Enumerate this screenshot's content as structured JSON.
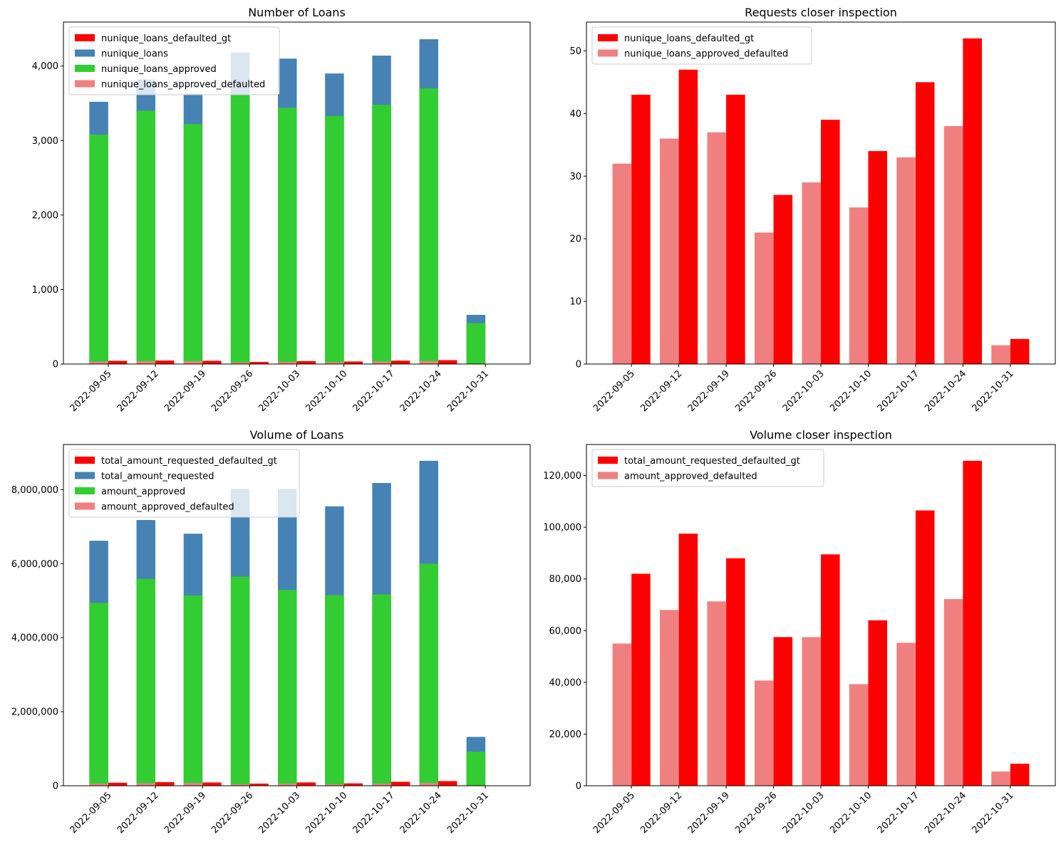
{
  "chart_data": [
    {
      "type": "bar",
      "title": "Number of Loans",
      "categories": [
        "2022-09-05",
        "2022-09-12",
        "2022-09-19",
        "2022-09-26",
        "2022-10-03",
        "2022-10-10",
        "2022-10-17",
        "2022-10-24",
        "2022-10-31"
      ],
      "series": [
        {
          "name": "nunique_loans_defaulted_gt",
          "color": "#ff0000",
          "values": [
            43,
            47,
            43,
            27,
            39,
            34,
            45,
            52,
            4
          ]
        },
        {
          "name": "nunique_loans",
          "color": "#4682b4",
          "values": [
            3520,
            3820,
            3630,
            4180,
            4100,
            3900,
            4140,
            4360,
            660
          ]
        },
        {
          "name": "nunique_loans_approved",
          "color": "#32cd32",
          "values": [
            3080,
            3400,
            3220,
            3610,
            3440,
            3330,
            3480,
            3700,
            550
          ]
        },
        {
          "name": "nunique_loans_approved_defaulted",
          "color": "#f08080",
          "values": [
            32,
            36,
            37,
            21,
            29,
            25,
            33,
            38,
            3
          ]
        }
      ],
      "yticks": [
        "0",
        "1,000",
        "2,000",
        "3,000",
        "4,000"
      ],
      "ylim": [
        0,
        4590
      ],
      "legend": "top-left",
      "grid": false
    },
    {
      "type": "bar",
      "title": "Requests closer inspection",
      "categories": [
        "2022-09-05",
        "2022-09-12",
        "2022-09-19",
        "2022-09-26",
        "2022-10-03",
        "2022-10-10",
        "2022-10-17",
        "2022-10-24",
        "2022-10-31"
      ],
      "series": [
        {
          "name": "nunique_loans_defaulted_gt",
          "color": "#ff0000",
          "values": [
            43,
            47,
            43,
            27,
            39,
            34,
            45,
            52,
            4
          ]
        },
        {
          "name": "nunique_loans_approved_defaulted",
          "color": "#f08080",
          "values": [
            32,
            36,
            37,
            21,
            29,
            25,
            33,
            38,
            3
          ]
        }
      ],
      "yticks": [
        "0",
        "10",
        "20",
        "30",
        "40",
        "50"
      ],
      "ylim": [
        0,
        54.6
      ],
      "legend": "top-left",
      "grid": false
    },
    {
      "type": "bar",
      "title": "Volume of Loans",
      "categories": [
        "2022-09-05",
        "2022-09-12",
        "2022-09-19",
        "2022-09-26",
        "2022-10-03",
        "2022-10-10",
        "2022-10-17",
        "2022-10-24",
        "2022-10-31"
      ],
      "series": [
        {
          "name": "total_amount_requested_defaulted_gt",
          "color": "#ff0000",
          "values": [
            82000,
            97500,
            88000,
            57500,
            89500,
            64000,
            106500,
            125700,
            8500
          ]
        },
        {
          "name": "total_amount_requested",
          "color": "#4682b4",
          "values": [
            6620000,
            7180000,
            6810000,
            8020000,
            8020000,
            7550000,
            8180000,
            8780000,
            1320000
          ]
        },
        {
          "name": "amount_approved",
          "color": "#32cd32",
          "values": [
            4940000,
            5590000,
            5140000,
            5650000,
            5290000,
            5150000,
            5170000,
            6000000,
            920000
          ]
        },
        {
          "name": "amount_approved_defaulted",
          "color": "#f08080",
          "values": [
            55000,
            68000,
            71300,
            40700,
            57500,
            39300,
            55300,
            72200,
            5500
          ]
        }
      ],
      "yticks": [
        "0",
        "2,000,000",
        "4,000,000",
        "6,000,000",
        "8,000,000"
      ],
      "ylim": [
        0,
        9220000
      ],
      "legend": "top-left",
      "grid": false
    },
    {
      "type": "bar",
      "title": "Volume closer inspection",
      "categories": [
        "2022-09-05",
        "2022-09-12",
        "2022-09-19",
        "2022-09-26",
        "2022-10-03",
        "2022-10-10",
        "2022-10-17",
        "2022-10-24",
        "2022-10-31"
      ],
      "series": [
        {
          "name": "total_amount_requested_defaulted_gt",
          "color": "#ff0000",
          "values": [
            82000,
            97500,
            88000,
            57500,
            89500,
            64000,
            106500,
            125700,
            8500
          ]
        },
        {
          "name": "amount_approved_defaulted",
          "color": "#f08080",
          "values": [
            55000,
            68000,
            71300,
            40700,
            57500,
            39300,
            55300,
            72200,
            5500
          ]
        }
      ],
      "yticks": [
        "0",
        "20,000",
        "40,000",
        "60,000",
        "80,000",
        "100,000",
        "120,000"
      ],
      "ylim": [
        0,
        132000
      ],
      "legend": "top-left",
      "grid": false
    }
  ]
}
